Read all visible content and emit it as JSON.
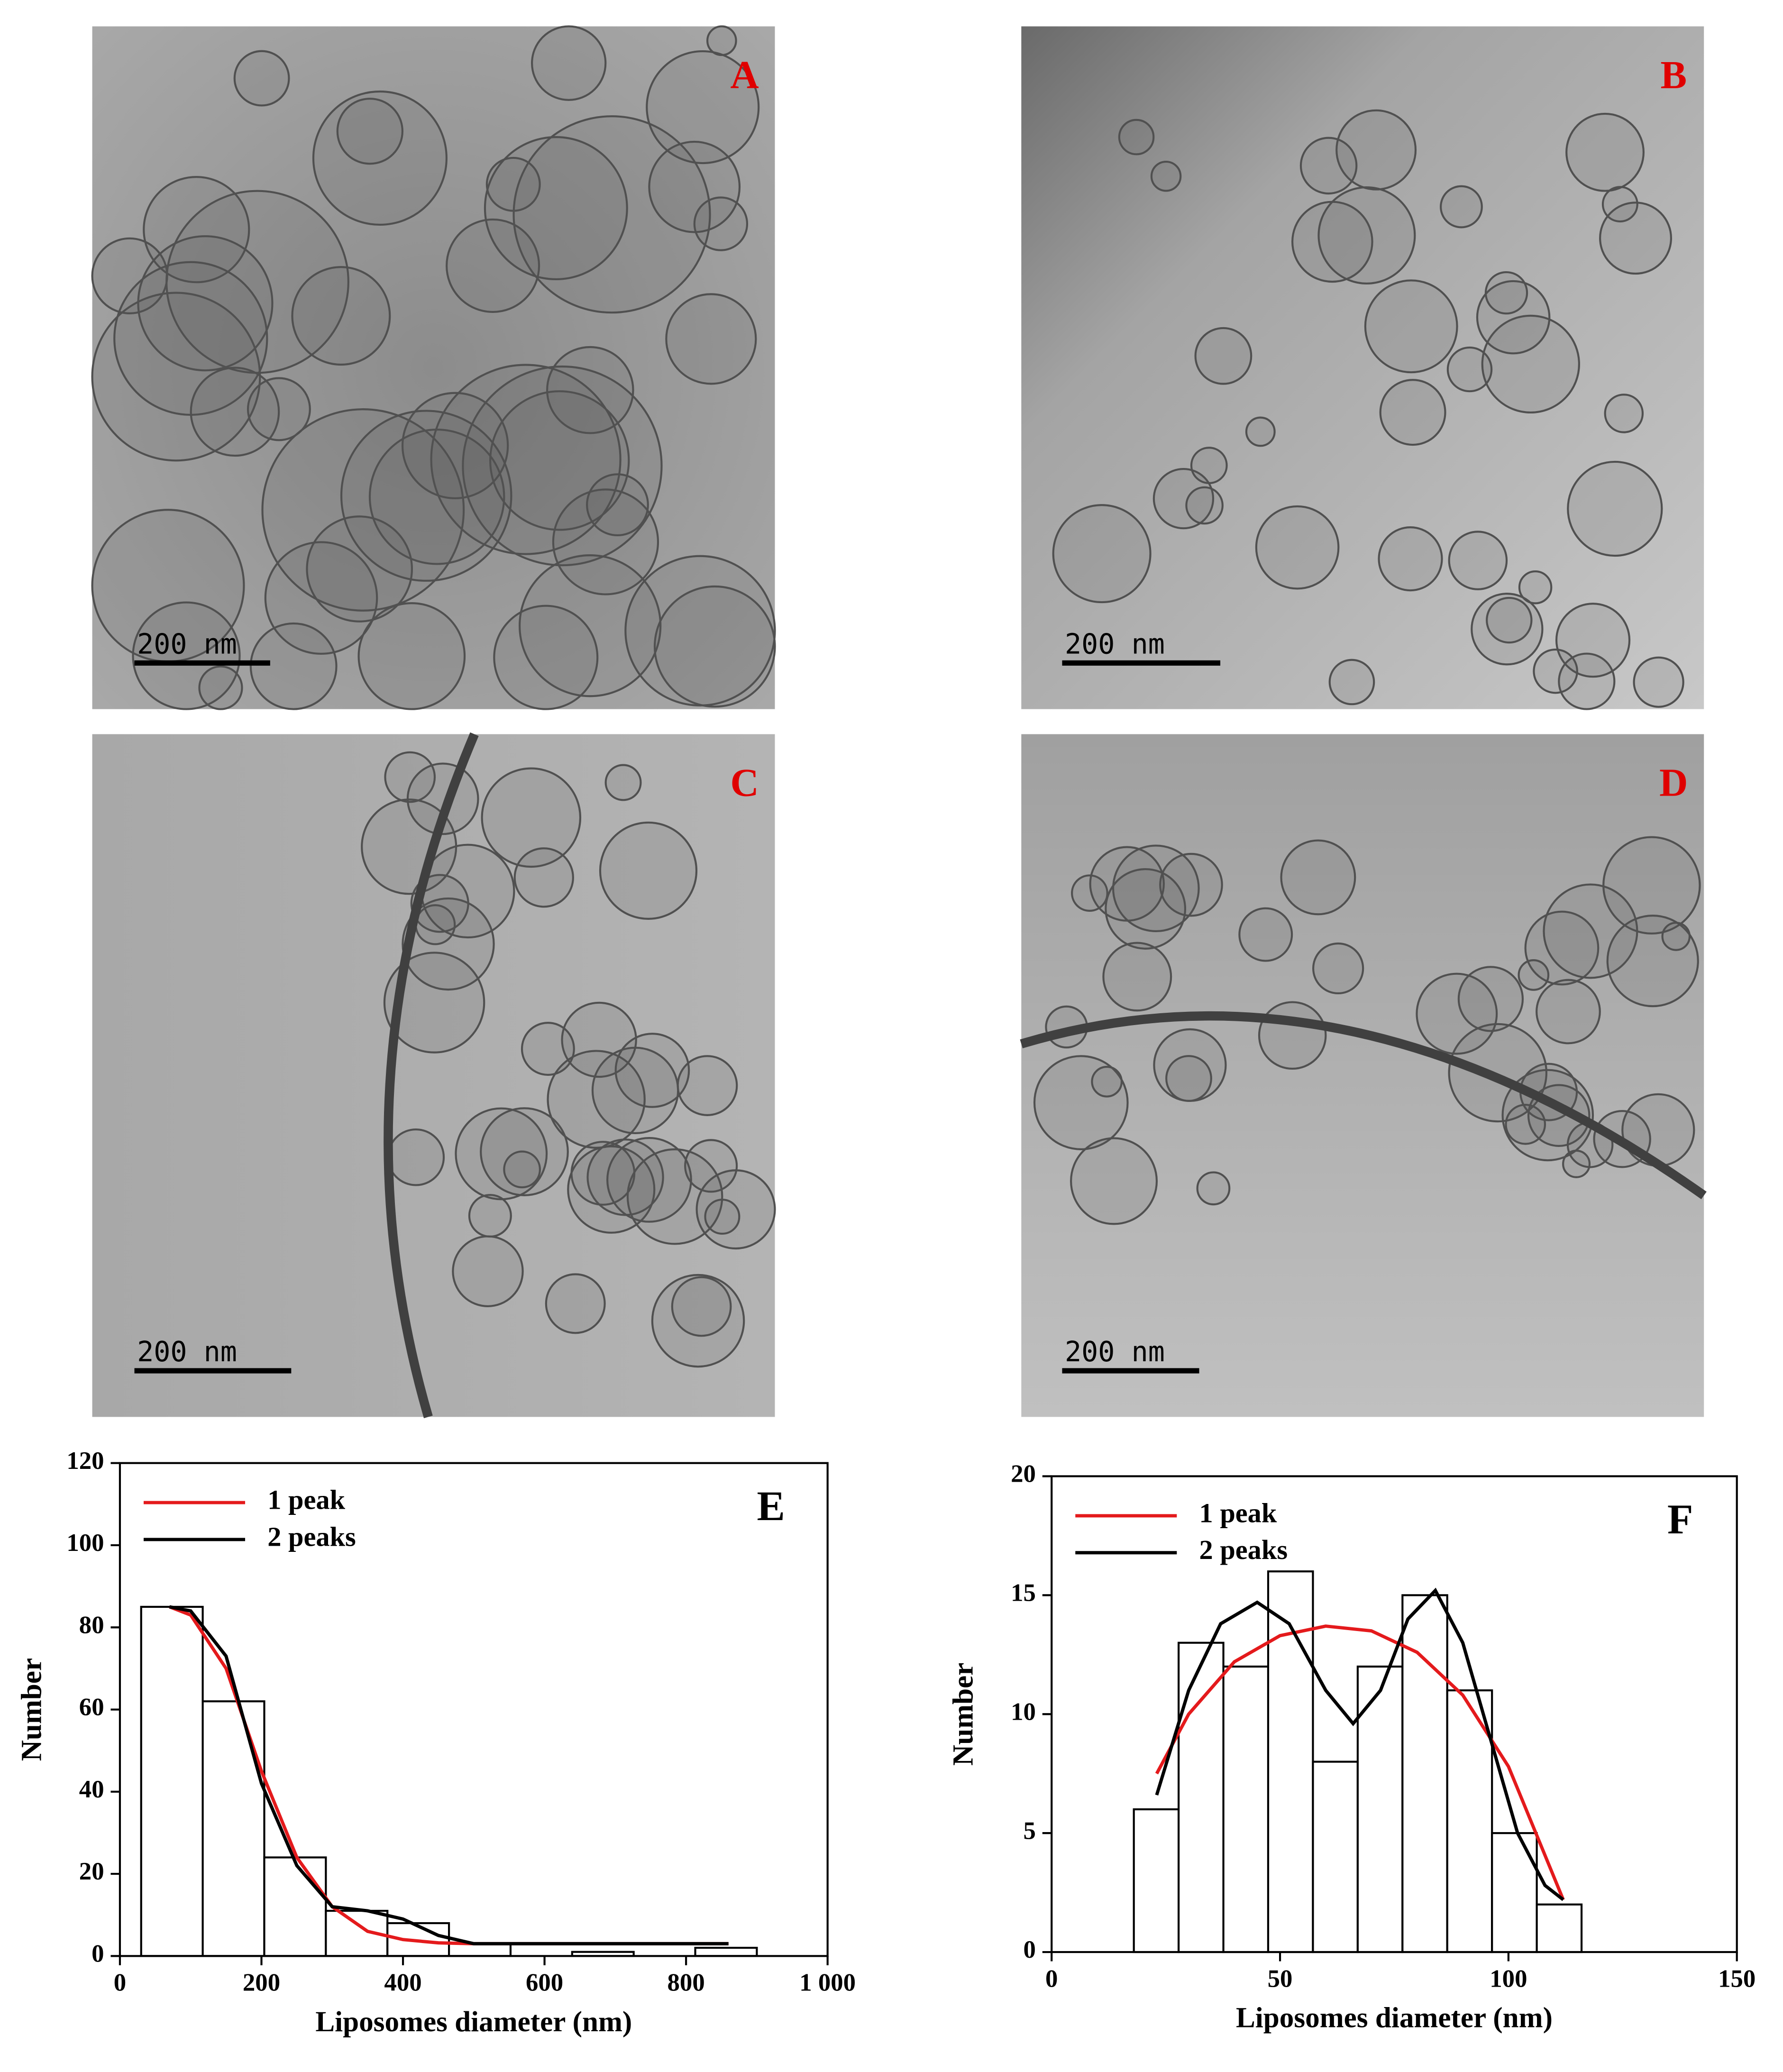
{
  "micrographs": [
    {
      "label": "A",
      "scale_bar": "200 nm"
    },
    {
      "label": "B",
      "scale_bar": "200 nm"
    },
    {
      "label": "C",
      "scale_bar": "200 nm"
    },
    {
      "label": "D",
      "scale_bar": "200 nm"
    }
  ],
  "chart_data": [
    {
      "type": "histogram",
      "panel_label": "E",
      "x_label": "Liposomes diameter (nm)",
      "y_label": "Number",
      "bins": [
        30,
        117,
        204,
        291,
        378,
        465,
        552,
        639,
        726,
        813,
        900
      ],
      "counts": [
        85,
        62,
        24,
        11,
        8,
        3,
        0,
        1,
        0,
        2
      ],
      "bar_color": "#ffffff",
      "xlim": [
        0,
        1000
      ],
      "xticks": [
        0,
        200,
        400,
        600,
        800,
        {
          "value": 1000,
          "label": "1 000"
        }
      ],
      "ylim": [
        0,
        120
      ],
      "yticks": [
        0,
        20,
        40,
        60,
        80,
        100,
        120
      ],
      "legend": "upper left",
      "series": [
        {
          "name": "1 peak",
          "color": "#e41a1c",
          "x": [
            70,
            100,
            150,
            200,
            250,
            300,
            350,
            400,
            450,
            500,
            600,
            700,
            860
          ],
          "values": [
            85,
            83,
            70,
            45,
            24,
            12,
            6,
            4,
            3.2,
            3,
            3,
            3,
            3
          ]
        },
        {
          "name": "2 peaks",
          "color": "#000000",
          "x": [
            70,
            100,
            150,
            200,
            250,
            300,
            350,
            400,
            450,
            500,
            600,
            700,
            860
          ],
          "values": [
            85,
            84,
            73,
            42,
            22,
            12,
            11,
            9,
            5,
            3,
            3,
            3,
            3
          ]
        }
      ]
    },
    {
      "type": "histogram",
      "panel_label": "F",
      "x_label": "Liposomes diameter (nm)",
      "y_label": "Number",
      "bins": [
        18,
        27.8,
        37.6,
        47.4,
        57.2,
        67,
        76.8,
        86.6,
        96.4,
        106.2,
        116
      ],
      "counts": [
        6,
        13,
        12,
        16,
        8,
        12,
        15,
        11,
        5,
        2
      ],
      "bar_color": "#ffffff",
      "xlim": [
        0,
        150
      ],
      "xticks": [
        0,
        50,
        100,
        150
      ],
      "ylim": [
        0,
        20
      ],
      "yticks": [
        0,
        5,
        10,
        15,
        20
      ],
      "legend": "upper left",
      "series": [
        {
          "name": "1 peak",
          "color": "#e41a1c",
          "x": [
            23,
            30,
            40,
            50,
            60,
            70,
            80,
            90,
            100,
            112
          ],
          "values": [
            7.5,
            10,
            12.2,
            13.3,
            13.7,
            13.5,
            12.6,
            10.8,
            7.8,
            2.2
          ]
        },
        {
          "name": "2 peaks",
          "color": "#000000",
          "x": [
            23,
            30,
            37,
            45,
            52,
            60,
            66,
            72,
            78,
            84,
            90,
            96,
            102,
            108,
            112
          ],
          "values": [
            6.6,
            11,
            13.8,
            14.7,
            13.8,
            11,
            9.6,
            11,
            14,
            15.2,
            13,
            9,
            5,
            2.8,
            2.2
          ]
        }
      ]
    }
  ]
}
